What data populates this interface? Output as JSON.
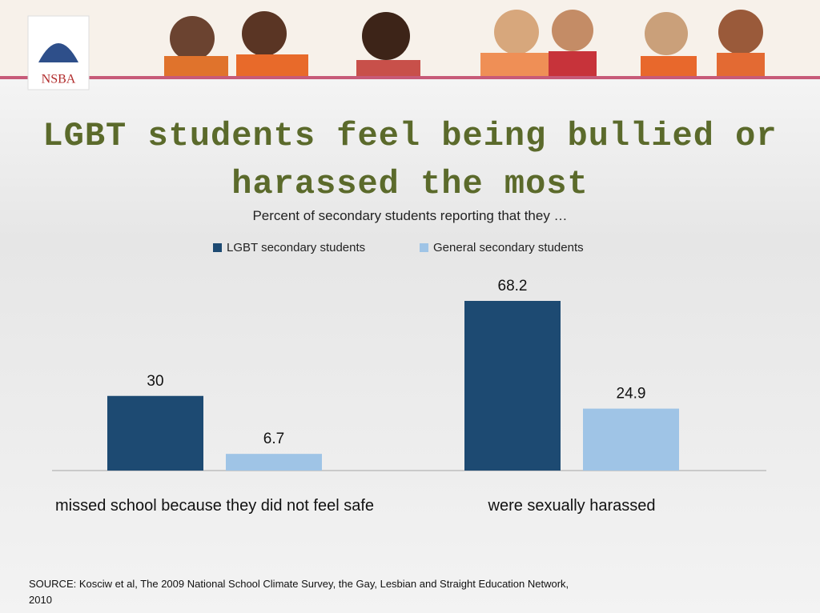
{
  "logo": "NSBA",
  "chart_data": {
    "type": "bar",
    "title": "LGBT students feel being bullied or harassed the most",
    "subtitle": "Percent of secondary students reporting that they …",
    "categories": [
      "missed school because they did not feel safe",
      "were sexually harassed"
    ],
    "series": [
      {
        "name": "LGBT secondary students",
        "color": "#1d4a72",
        "values": [
          30,
          68.2
        ]
      },
      {
        "name": "General secondary students",
        "color": "#9fc4e6",
        "values": [
          6.7,
          24.9
        ]
      }
    ]
  },
  "source": "SOURCE: Kosciw et al, The 2009 National School Climate Survey, the Gay, Lesbian and Straight Education Network, 2010"
}
